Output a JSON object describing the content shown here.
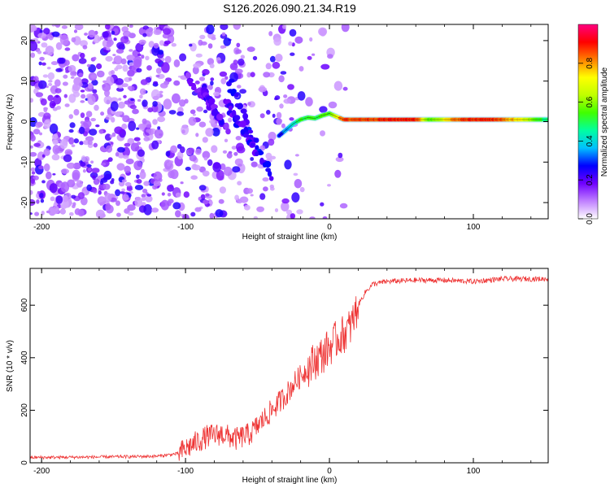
{
  "figure_title": "S126.2026.090.21.34.R19",
  "chart_data": [
    {
      "type": "heatmap",
      "title": "S126.2026.090.21.34.R19",
      "xlabel": "Height of straight line (km)",
      "ylabel": "Frequency (Hz)",
      "xlim": [
        -208,
        152
      ],
      "ylim": [
        -24,
        24
      ],
      "x_ticks": [
        -200,
        -100,
        0,
        100
      ],
      "y_ticks": [
        -20,
        -10,
        0,
        10,
        20
      ],
      "colorbar": {
        "label": "Normalized spectral amplitude",
        "range": [
          0.0,
          1.0
        ],
        "ticks": [
          0.0,
          0.2,
          0.4,
          0.6,
          0.8
        ],
        "tick_labels": [
          "0.0",
          "0.2",
          "0.4",
          "0.6",
          "0.8"
        ],
        "colors": [
          "#ffffff",
          "#c080ff",
          "#7000ff",
          "#0000ff",
          "#00c0ff",
          "#00ffa0",
          "#40ff00",
          "#c0ff00",
          "#ffff00",
          "#ff8000",
          "#ff0000",
          "#ff0080"
        ]
      },
      "main_line": {
        "description": "carrier line",
        "points": [
          {
            "x": -35,
            "y": -3.5
          },
          {
            "x": -30,
            "y": -2
          },
          {
            "x": -25,
            "y": -0.5
          },
          {
            "x": -20,
            "y": 0.5
          },
          {
            "x": -15,
            "y": 1
          },
          {
            "x": -10,
            "y": 0.8
          },
          {
            "x": -5,
            "y": 1.5
          },
          {
            "x": 0,
            "y": 2
          },
          {
            "x": 5,
            "y": 1.2
          },
          {
            "x": 10,
            "y": 0.5
          },
          {
            "x": 152,
            "y": 0.5
          }
        ],
        "amplitude": [
          {
            "x": -35,
            "a": 0.25
          },
          {
            "x": -20,
            "a": 0.5
          },
          {
            "x": 0,
            "a": 0.55
          },
          {
            "x": 10,
            "a": 0.85
          },
          {
            "x": 60,
            "a": 0.9
          },
          {
            "x": 70,
            "a": 0.55
          },
          {
            "x": 90,
            "a": 0.85
          },
          {
            "x": 110,
            "a": 0.9
          },
          {
            "x": 130,
            "a": 0.75
          },
          {
            "x": 152,
            "a": 0.45
          }
        ]
      },
      "streaks": [
        {
          "from": [
            -70,
            10
          ],
          "to": [
            -40,
            -14
          ],
          "amplitude": 0.25
        },
        {
          "from": [
            -72,
            5
          ],
          "to": [
            -50,
            -8
          ],
          "amplitude": 0.22
        },
        {
          "from": [
            -100,
            12
          ],
          "to": [
            -70,
            -2
          ],
          "amplitude": 0.18
        },
        {
          "from": [
            -88,
            8
          ],
          "to": [
            -75,
            0
          ],
          "amplitude": 0.2
        }
      ]
    },
    {
      "type": "line",
      "xlabel": "Height of straight line (km)",
      "ylabel": "SNR (10 * v/v)",
      "xlim": [
        -208,
        152
      ],
      "ylim": [
        0,
        740
      ],
      "x_ticks": [
        -200,
        -100,
        0,
        100
      ],
      "y_ticks": [
        0,
        200,
        400,
        600
      ],
      "series": [
        {
          "name": "SNR",
          "color": "#ee3333",
          "x": [
            -208,
            -160,
            -120,
            -105,
            -95,
            -85,
            -75,
            -65,
            -55,
            -45,
            -40,
            -35,
            -30,
            -25,
            -20,
            -15,
            -10,
            -5,
            0,
            5,
            10,
            15,
            20,
            25,
            30,
            40,
            60,
            80,
            100,
            120,
            140,
            152
          ],
          "y": [
            20,
            22,
            25,
            35,
            70,
            100,
            110,
            90,
            110,
            170,
            200,
            230,
            260,
            300,
            330,
            360,
            390,
            410,
            440,
            470,
            490,
            520,
            600,
            650,
            680,
            690,
            695,
            695,
            690,
            700,
            700,
            700
          ]
        }
      ]
    }
  ]
}
